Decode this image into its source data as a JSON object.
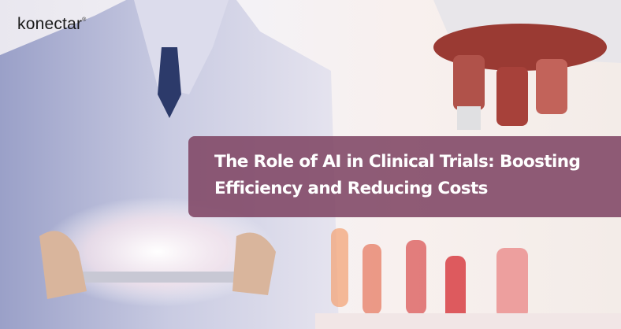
{
  "brand": {
    "logo_text": "konectar",
    "registered_mark": "®"
  },
  "headline": {
    "title": "The Role of AI in Clinical Trials: Boosting Efficiency and Reducing Costs"
  },
  "colors": {
    "title_box": "#80466a",
    "title_text": "#ffffff"
  }
}
